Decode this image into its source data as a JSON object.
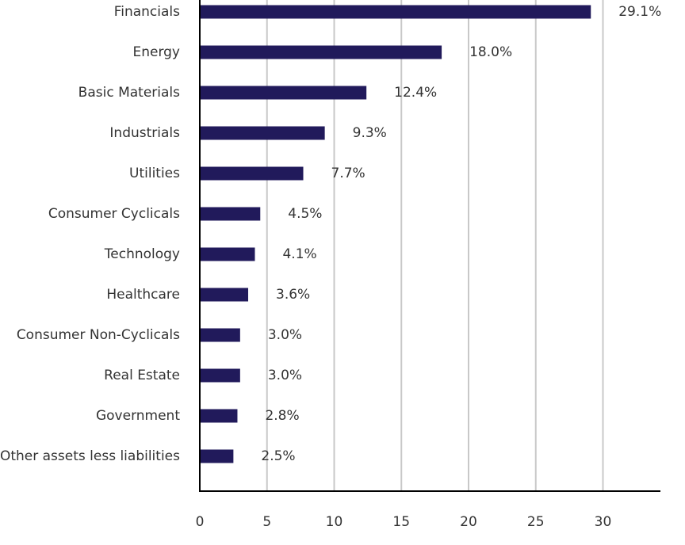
{
  "chart_data": {
    "type": "bar",
    "orientation": "horizontal",
    "categories": [
      "Financials",
      "Energy",
      "Basic Materials",
      "Industrials",
      "Utilities",
      "Consumer Cyclicals",
      "Technology",
      "Healthcare",
      "Consumer Non-Cyclicals",
      "Real Estate",
      "Government",
      "Other assets less liabilities"
    ],
    "values": [
      29.1,
      18.0,
      12.4,
      9.3,
      7.7,
      4.5,
      4.1,
      3.6,
      3.0,
      3.0,
      2.8,
      2.5
    ],
    "value_labels": [
      "29.1%",
      "18.0%",
      "12.4%",
      "9.3%",
      "7.7%",
      "4.5%",
      "4.1%",
      "3.6%",
      "3.0%",
      "3.0%",
      "2.8%",
      "2.5%"
    ],
    "xticks": [
      "0",
      "5",
      "10",
      "15",
      "20",
      "25",
      "30"
    ],
    "xlim": [
      0,
      34.2
    ],
    "grid": "vertical",
    "colors": {
      "bar": "#211a5b",
      "grid": "#c8c8c8",
      "axis": "#000000",
      "text": "#333333"
    }
  }
}
